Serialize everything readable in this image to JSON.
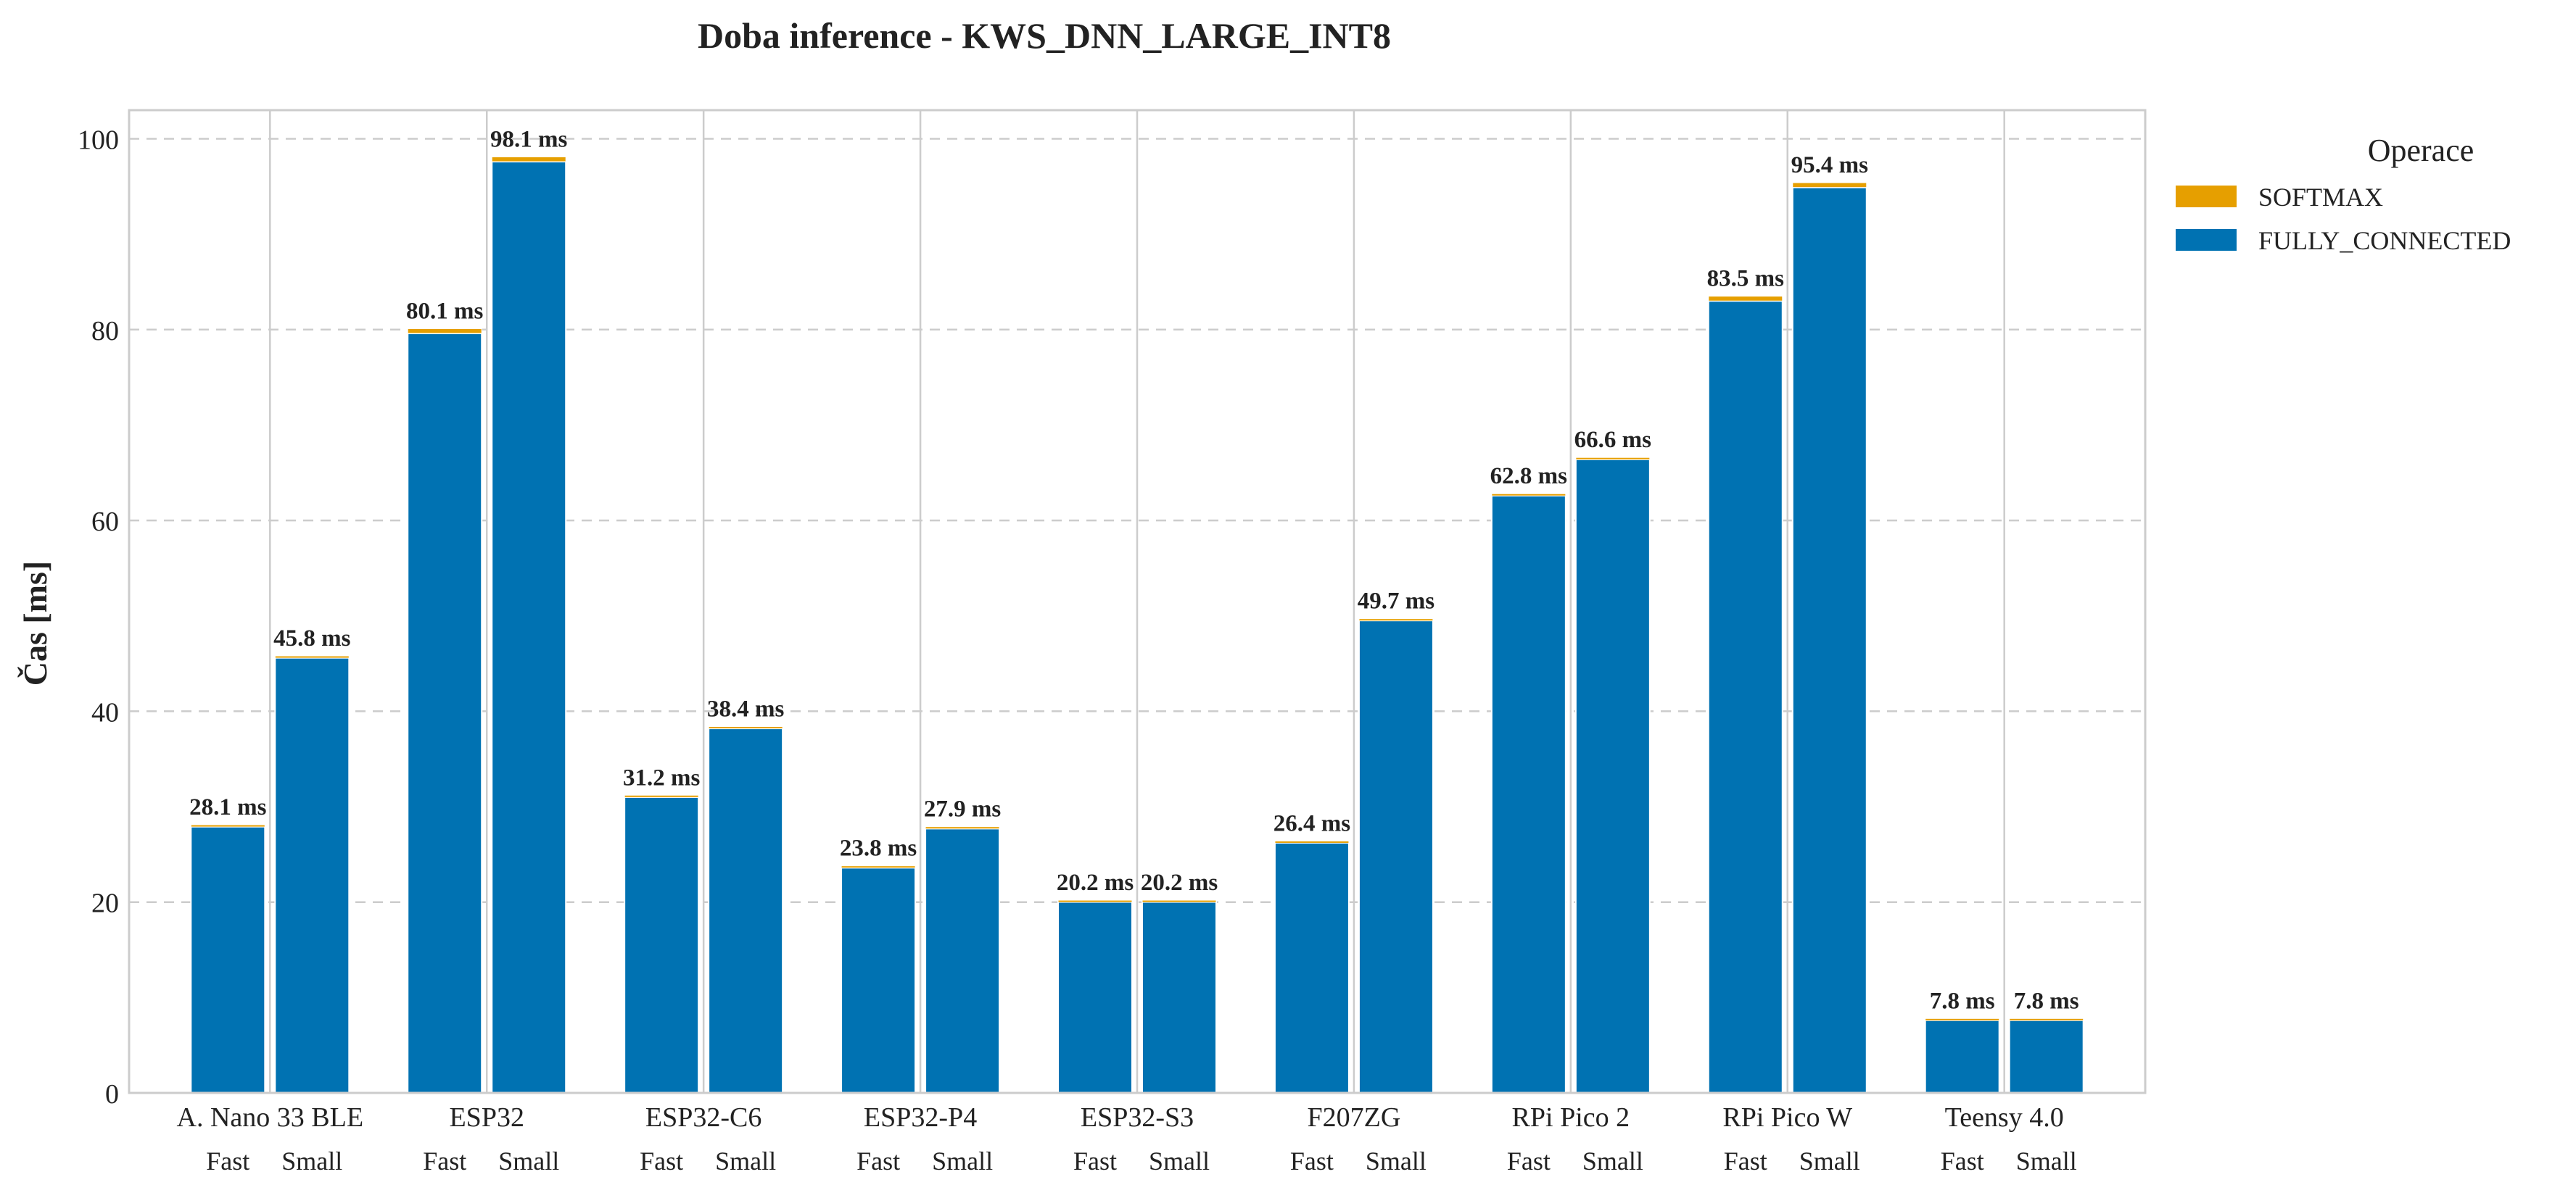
{
  "chart_data": {
    "type": "bar",
    "stacked": true,
    "title": "Doba inference - KWS_DNN_LARGE_INT8",
    "xlabel": "",
    "ylabel": "Čas [ms]",
    "ylim": [
      0,
      103
    ],
    "yticks": [
      0,
      20,
      40,
      60,
      80,
      100
    ],
    "grid": true,
    "legend_title": "Operace",
    "legend_position": "outside-top-right",
    "value_suffix": " ms",
    "devices": [
      "A. Nano 33 BLE",
      "ESP32",
      "ESP32-C6",
      "ESP32-P4",
      "ESP32-S3",
      "F207ZG",
      "RPi Pico 2",
      "RPi Pico W",
      "Teensy 4.0"
    ],
    "variants": [
      "Fast",
      "Small"
    ],
    "totals": [
      [
        28.1,
        45.8
      ],
      [
        80.1,
        98.1
      ],
      [
        31.2,
        38.4
      ],
      [
        23.8,
        27.9
      ],
      [
        20.2,
        20.2
      ],
      [
        26.4,
        49.7
      ],
      [
        62.8,
        66.6
      ],
      [
        83.5,
        95.4
      ],
      [
        7.8,
        7.8
      ]
    ],
    "series": [
      {
        "name": "FULLY_CONNECTED",
        "color": "#0072b2",
        "values": [
          [
            27.9,
            45.6
          ],
          [
            79.6,
            97.6
          ],
          [
            31.0,
            38.2
          ],
          [
            23.6,
            27.7
          ],
          [
            20.1,
            20.1
          ],
          [
            26.3,
            49.6
          ],
          [
            62.6,
            66.4
          ],
          [
            83.0,
            94.9
          ],
          [
            7.75,
            7.75
          ]
        ]
      },
      {
        "name": "SOFTMAX",
        "color": "#e69f00",
        "values": [
          [
            0.2,
            0.2
          ],
          [
            0.5,
            0.5
          ],
          [
            0.2,
            0.2
          ],
          [
            0.2,
            0.2
          ],
          [
            0.1,
            0.1
          ],
          [
            0.1,
            0.1
          ],
          [
            0.2,
            0.2
          ],
          [
            0.5,
            0.5
          ],
          [
            0.05,
            0.05
          ]
        ]
      }
    ],
    "legend_order": [
      "SOFTMAX",
      "FULLY_CONNECTED"
    ]
  }
}
